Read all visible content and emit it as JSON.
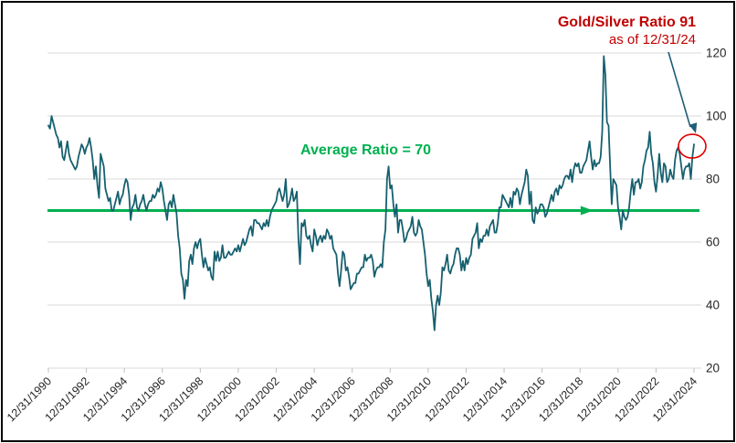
{
  "annotations": {
    "callout_line1": "Gold/Silver Ratio 91",
    "callout_line2": "as of 12/31/24",
    "average_label": "Average Ratio = 70"
  },
  "colors": {
    "series_line": "#16606F",
    "average_line": "#00B050",
    "average_label_text": "#00B050",
    "callout_text": "#C00000",
    "callout_arrow": "#1F5C78",
    "highlight_circle": "#E00000",
    "gridline": "#D9D9D9",
    "tick_mark": "#BFBFBF",
    "axis_text": "#262626"
  },
  "chart_data": {
    "type": "line",
    "title": "",
    "series_name": "Gold/Silver Ratio",
    "frequency": "monthly",
    "start": "12/31/1990",
    "end": "12/31/2024",
    "x_tick_labels": [
      "12/31/1990",
      "12/31/1992",
      "12/31/1994",
      "12/31/1996",
      "12/31/1998",
      "12/31/2000",
      "12/31/2002",
      "12/31/2004",
      "12/31/2006",
      "12/31/2008",
      "12/31/2010",
      "12/31/2012",
      "12/31/2014",
      "12/31/2016",
      "12/31/2018",
      "12/31/2020",
      "12/31/2022",
      "12/31/2024"
    ],
    "x_tick_every_n_points": 24,
    "y_ticks": [
      20,
      40,
      60,
      80,
      100,
      120
    ],
    "ylim": [
      20,
      120
    ],
    "y_axis_side": "right",
    "grid": "horizontal",
    "average_line_value": 70,
    "last_point": {
      "label": "12/31/24",
      "value": 91
    },
    "values": [
      97,
      96,
      100,
      98,
      96,
      94,
      93,
      90,
      92,
      87,
      86,
      89,
      92,
      88,
      86,
      85,
      84,
      83,
      84,
      87,
      89,
      91,
      90,
      88,
      90,
      91,
      93,
      90,
      86,
      80,
      84,
      78,
      74,
      88,
      86,
      84,
      77,
      75,
      73,
      74,
      70,
      70,
      72,
      74,
      76,
      72,
      74,
      75,
      78,
      80,
      79,
      75,
      67,
      71,
      72,
      75,
      71,
      70,
      72,
      73,
      75,
      72,
      70,
      72,
      73,
      73,
      75,
      74,
      75,
      77,
      76,
      79,
      77,
      73,
      70,
      67,
      72,
      73,
      71,
      75,
      72,
      69,
      62,
      58,
      50,
      48,
      42,
      48,
      46,
      54,
      56,
      53,
      58,
      60,
      58,
      60,
      61,
      56,
      52,
      55,
      53,
      51,
      52,
      49,
      48,
      57,
      54,
      57,
      54,
      55,
      59,
      55,
      55,
      56,
      57,
      56,
      56,
      57,
      58,
      57,
      59,
      57,
      59,
      61,
      59,
      60,
      62,
      64,
      65,
      62,
      67,
      67,
      66,
      66,
      65,
      64,
      66,
      65,
      67,
      65,
      68,
      70,
      71,
      72,
      73,
      76,
      77,
      75,
      73,
      75,
      80,
      71,
      72,
      74,
      77,
      73,
      74,
      76,
      61,
      53,
      66,
      65,
      67,
      62,
      61,
      62,
      59,
      57,
      64,
      62,
      59,
      61,
      62,
      60,
      62,
      61,
      64,
      63,
      61,
      62,
      58,
      57,
      56,
      50,
      46,
      51,
      57,
      56,
      51,
      52,
      49,
      45,
      46,
      47,
      47,
      50,
      50,
      51,
      52,
      52,
      56,
      54,
      55,
      55,
      56,
      54,
      49,
      51,
      52,
      52,
      53,
      52,
      60,
      64,
      80,
      84,
      77,
      78,
      72,
      68,
      72,
      63,
      67,
      67,
      64,
      60,
      61,
      63,
      64,
      65,
      68,
      63,
      62,
      63,
      67,
      65,
      64,
      60,
      56,
      50,
      46,
      48,
      42,
      38,
      32,
      40,
      43,
      40,
      44,
      52,
      51,
      53,
      56,
      51,
      50,
      52,
      53,
      56,
      58,
      58,
      56,
      51,
      54,
      51,
      55,
      53,
      55,
      56,
      61,
      62,
      63,
      66,
      58,
      61,
      60,
      62,
      62,
      64,
      62,
      65,
      66,
      67,
      63,
      63,
      66,
      71,
      71,
      75,
      74,
      73,
      72,
      71,
      74,
      71,
      76,
      75,
      77,
      76,
      72,
      75,
      77,
      79,
      83,
      81,
      72,
      76,
      67,
      66,
      71,
      69,
      70,
      72,
      72,
      71,
      68,
      69,
      71,
      73,
      75,
      73,
      76,
      77,
      75,
      78,
      77,
      78,
      80,
      81,
      81,
      80,
      83,
      79,
      83,
      85,
      84,
      85,
      82,
      82,
      84,
      85,
      86,
      89,
      92,
      87,
      83,
      86,
      84,
      85,
      85,
      87,
      95,
      119,
      113,
      98,
      97,
      84,
      72,
      80,
      79,
      78,
      71,
      68,
      64,
      70,
      68,
      67,
      68,
      71,
      76,
      80,
      75,
      79,
      79,
      80,
      77,
      79,
      84,
      86,
      89,
      90,
      95,
      88,
      85,
      79,
      76,
      81,
      88,
      82,
      79,
      85,
      84,
      79,
      80,
      83,
      81,
      80,
      86,
      89,
      90,
      88,
      84,
      80,
      83,
      84,
      84,
      85,
      80,
      87,
      91
    ]
  }
}
